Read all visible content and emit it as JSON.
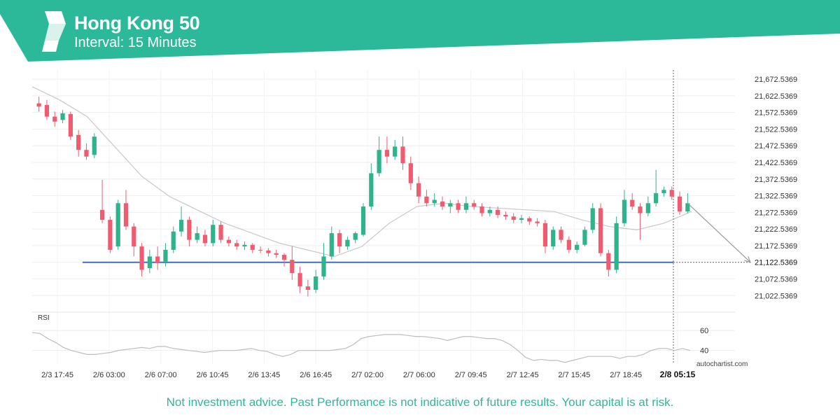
{
  "header": {
    "title": "Hong Kong 50",
    "subtitle": "Interval: 15 Minutes",
    "accent_color": "#2bb99a"
  },
  "footer": {
    "disclaimer": "Not investment advice. Past Performance is not indicative of future results. Your capital is at risk.",
    "brand": "autochartist.com"
  },
  "chart_data": [
    {
      "type": "candlestick",
      "y_ticks": [
        "21,672.5369",
        "21,622.5369",
        "21,572.5369",
        "21,522.5369",
        "21,472.5369",
        "21,422.5369",
        "21,372.5369",
        "21,322.5369",
        "21,272.5369",
        "21,222.5369",
        "21,172.5369",
        "21,122.5369",
        "21,072.5369",
        "21,022.5369"
      ],
      "ylim": [
        21000,
        21700
      ],
      "x_ticks": [
        "2/3 17:45",
        "2/6 03:00",
        "2/6 07:00",
        "2/6 10:45",
        "2/6 13:45",
        "2/6 16:45",
        "2/7 02:00",
        "2/7 06:00",
        "2/7 09:45",
        "2/7 12:45",
        "2/7 15:45",
        "2/7 18:45",
        "2/8 05:15"
      ],
      "highlighted_x_tick": "2/8 05:15",
      "support_level": 21122.5369,
      "support_level_label": "21,122.5369",
      "moving_average": [
        21650,
        21610,
        21560,
        21470,
        21380,
        21320,
        21280,
        21240,
        21210,
        21180,
        21160,
        21140,
        21170,
        21240,
        21290,
        21300,
        21290,
        21285,
        21280,
        21275,
        21250,
        21230,
        21220,
        21240,
        21275
      ],
      "projection": {
        "from_x": "2/8 05:15",
        "to_value": 21122.5369
      },
      "candles": [
        [
          21600,
          21590,
          21620,
          21575
        ],
        [
          21595,
          21560,
          21610,
          21550
        ],
        [
          21560,
          21545,
          21575,
          21530
        ],
        [
          21550,
          21570,
          21580,
          21540
        ],
        [
          21568,
          21500,
          21575,
          21490
        ],
        [
          21505,
          21460,
          21520,
          21440
        ],
        [
          21460,
          21440,
          21480,
          21430
        ],
        [
          21445,
          21500,
          21510,
          21435
        ],
        [
          21280,
          21250,
          21370,
          21240
        ],
        [
          21250,
          21160,
          21260,
          21150
        ],
        [
          21170,
          21300,
          21310,
          21160
        ],
        [
          21300,
          21230,
          21340,
          21220
        ],
        [
          21230,
          21170,
          21240,
          21140
        ],
        [
          21170,
          21100,
          21180,
          21080
        ],
        [
          21105,
          21140,
          21160,
          21090
        ],
        [
          21140,
          21120,
          21170,
          21100
        ],
        [
          21125,
          21160,
          21180,
          21110
        ],
        [
          21160,
          21215,
          21230,
          21150
        ],
        [
          21215,
          21250,
          21290,
          21200
        ],
        [
          21250,
          21190,
          21260,
          21170
        ],
        [
          21190,
          21210,
          21230,
          21180
        ],
        [
          21205,
          21180,
          21220,
          21170
        ],
        [
          21180,
          21235,
          21250,
          21170
        ],
        [
          21235,
          21190,
          21245,
          21180
        ],
        [
          21190,
          21180,
          21200,
          21170
        ],
        [
          21180,
          21170,
          21190,
          21160
        ],
        [
          21170,
          21175,
          21185,
          21160
        ],
        [
          21175,
          21160,
          21180,
          21150
        ],
        [
          21160,
          21158,
          21170,
          21150
        ],
        [
          21158,
          21150,
          21165,
          21140
        ],
        [
          21150,
          21145,
          21160,
          21135
        ],
        [
          21145,
          21130,
          21150,
          21110
        ],
        [
          21130,
          21090,
          21170,
          21070
        ],
        [
          21090,
          21050,
          21110,
          21030
        ],
        [
          21050,
          21040,
          21070,
          21020
        ],
        [
          21040,
          21080,
          21100,
          21030
        ],
        [
          21080,
          21140,
          21180,
          21070
        ],
        [
          21140,
          21210,
          21230,
          21130
        ],
        [
          21210,
          21170,
          21220,
          21150
        ],
        [
          21170,
          21190,
          21200,
          21160
        ],
        [
          21190,
          21210,
          21215,
          21180
        ],
        [
          21205,
          21290,
          21300,
          21200
        ],
        [
          21290,
          21390,
          21420,
          21280
        ],
        [
          21390,
          21460,
          21500,
          21380
        ],
        [
          21460,
          21440,
          21500,
          21420
        ],
        [
          21440,
          21470,
          21490,
          21430
        ],
        [
          21470,
          21420,
          21500,
          21400
        ],
        [
          21420,
          21360,
          21440,
          21340
        ],
        [
          21360,
          21320,
          21380,
          21300
        ],
        [
          21320,
          21300,
          21340,
          21290
        ],
        [
          21300,
          21310,
          21330,
          21290
        ],
        [
          21305,
          21290,
          21320,
          21280
        ],
        [
          21290,
          21300,
          21310,
          21270
        ],
        [
          21300,
          21280,
          21310,
          21270
        ],
        [
          21280,
          21300,
          21320,
          21270
        ],
        [
          21300,
          21290,
          21310,
          21280
        ],
        [
          21290,
          21270,
          21300,
          21260
        ],
        [
          21270,
          21280,
          21290,
          21260
        ],
        [
          21280,
          21265,
          21290,
          21255
        ],
        [
          21265,
          21260,
          21275,
          21250
        ],
        [
          21260,
          21250,
          21270,
          21240
        ],
        [
          21250,
          21255,
          21265,
          21240
        ],
        [
          21255,
          21245,
          21260,
          21235
        ],
        [
          21245,
          21240,
          21255,
          21230
        ],
        [
          21240,
          21170,
          21250,
          21150
        ],
        [
          21170,
          21220,
          21230,
          21160
        ],
        [
          21220,
          21190,
          21230,
          21180
        ],
        [
          21190,
          21160,
          21200,
          21150
        ],
        [
          21160,
          21175,
          21185,
          21150
        ],
        [
          21175,
          21220,
          21230,
          21170
        ],
        [
          21220,
          21285,
          21300,
          21210
        ],
        [
          21285,
          21150,
          21300,
          21140
        ],
        [
          21150,
          21100,
          21160,
          21080
        ],
        [
          21100,
          21240,
          21260,
          21090
        ],
        [
          21240,
          21310,
          21340,
          21230
        ],
        [
          21310,
          21290,
          21330,
          21280
        ],
        [
          21290,
          21270,
          21300,
          21190
        ],
        [
          21270,
          21300,
          21320,
          21260
        ],
        [
          21300,
          21330,
          21400,
          21290
        ],
        [
          21330,
          21340,
          21350,
          21320
        ],
        [
          21340,
          21320,
          21350,
          21310
        ],
        [
          21320,
          21275,
          21335,
          21265
        ],
        [
          21275,
          21300,
          21330,
          21270
        ]
      ]
    },
    {
      "type": "line",
      "label": "RSI",
      "y_ticks": [
        "60",
        "40"
      ],
      "ylim": [
        25,
        70
      ],
      "values": [
        58,
        57,
        52,
        48,
        43,
        40,
        38,
        36,
        36,
        37,
        38,
        40,
        41,
        42,
        43,
        42,
        44,
        44,
        42,
        41,
        40,
        39,
        38,
        39,
        40,
        40,
        40,
        41,
        42,
        40,
        39,
        36,
        34,
        36,
        40,
        40,
        40,
        40,
        40,
        41,
        42,
        46,
        52,
        54,
        55,
        56,
        56,
        56,
        55,
        54,
        54,
        53,
        52,
        50,
        52,
        54,
        54,
        53,
        52,
        52,
        50,
        46,
        40,
        33,
        30,
        31,
        30,
        30,
        28,
        30,
        32,
        34,
        34,
        34,
        34,
        32,
        34,
        34,
        36,
        40,
        42,
        42,
        40,
        42,
        40
      ]
    }
  ]
}
